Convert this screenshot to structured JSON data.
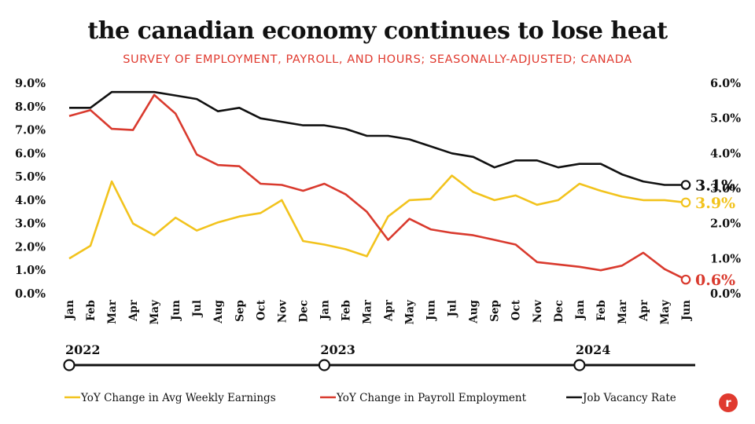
{
  "title": "the canadian economy continues to lose heat",
  "subtitle": "SURVEY OF EMPLOYMENT, PAYROLL,  AND HOURS; SEASONALLY-ADJUSTED; CANADA",
  "colors": {
    "earnings": "#f2c31d",
    "payroll": "#d93a2e",
    "vacancy": "#111111"
  },
  "chart_data": {
    "type": "line",
    "categories": [
      "Jan",
      "Feb",
      "Mar",
      "Apr",
      "May",
      "Jun",
      "Jul",
      "Aug",
      "Sep",
      "Oct",
      "Nov",
      "Dec",
      "Jan",
      "Feb",
      "Mar",
      "Apr",
      "May",
      "Jun",
      "Jul",
      "Aug",
      "Sep",
      "Oct",
      "Nov",
      "Dec",
      "Jan",
      "Feb",
      "Mar",
      "Apr",
      "May",
      "Jun"
    ],
    "year_labels": [
      {
        "label": "2022",
        "index": 0
      },
      {
        "label": "2023",
        "index": 12
      },
      {
        "label": "2024",
        "index": 24
      }
    ],
    "y_left": {
      "ticks": [
        "0.0%",
        "1.0%",
        "2.0%",
        "3.0%",
        "4.0%",
        "5.0%",
        "6.0%",
        "7.0%",
        "8.0%",
        "9.0%"
      ],
      "ylim": [
        0,
        9
      ]
    },
    "y_right": {
      "ticks": [
        "0.0%",
        "1.0%",
        "2.0%",
        "3.0%",
        "4.0%",
        "5.0%",
        "6.0%"
      ],
      "ylim": [
        0,
        6
      ]
    },
    "series": [
      {
        "name": "YoY Change in Avg Weekly Earnings",
        "axis": "left",
        "color": "#f2c31d",
        "end_label": "3.9%",
        "values": [
          1.5,
          2.05,
          4.8,
          3.0,
          2.5,
          3.25,
          2.7,
          3.05,
          3.3,
          3.45,
          4.0,
          2.25,
          2.1,
          1.9,
          1.6,
          3.3,
          4.0,
          4.05,
          5.05,
          4.35,
          4.0,
          4.2,
          3.8,
          4.0,
          4.7,
          4.4,
          4.15,
          4.0,
          4.0,
          3.9
        ]
      },
      {
        "name": "YoY Change in Payroll Employment",
        "axis": "left",
        "color": "#d93a2e",
        "end_label": "0.6%",
        "values": [
          7.6,
          7.85,
          7.05,
          7.0,
          8.5,
          7.7,
          5.95,
          5.5,
          5.45,
          4.7,
          4.65,
          4.4,
          4.7,
          4.25,
          3.5,
          2.3,
          3.2,
          2.75,
          2.6,
          2.5,
          2.3,
          2.1,
          1.35,
          1.25,
          1.15,
          1.0,
          1.2,
          1.75,
          1.05,
          0.6
        ]
      },
      {
        "name": "Job Vacancy Rate",
        "axis": "right",
        "color": "#111111",
        "end_label": "3.1%",
        "values": [
          5.3,
          5.3,
          5.75,
          5.75,
          5.75,
          5.65,
          5.55,
          5.2,
          5.3,
          5.0,
          4.9,
          4.8,
          4.8,
          4.7,
          4.5,
          4.5,
          4.4,
          4.2,
          4.0,
          3.9,
          3.6,
          3.8,
          3.8,
          3.6,
          3.7,
          3.7,
          3.4,
          3.2,
          3.1,
          3.1
        ]
      }
    ]
  }
}
